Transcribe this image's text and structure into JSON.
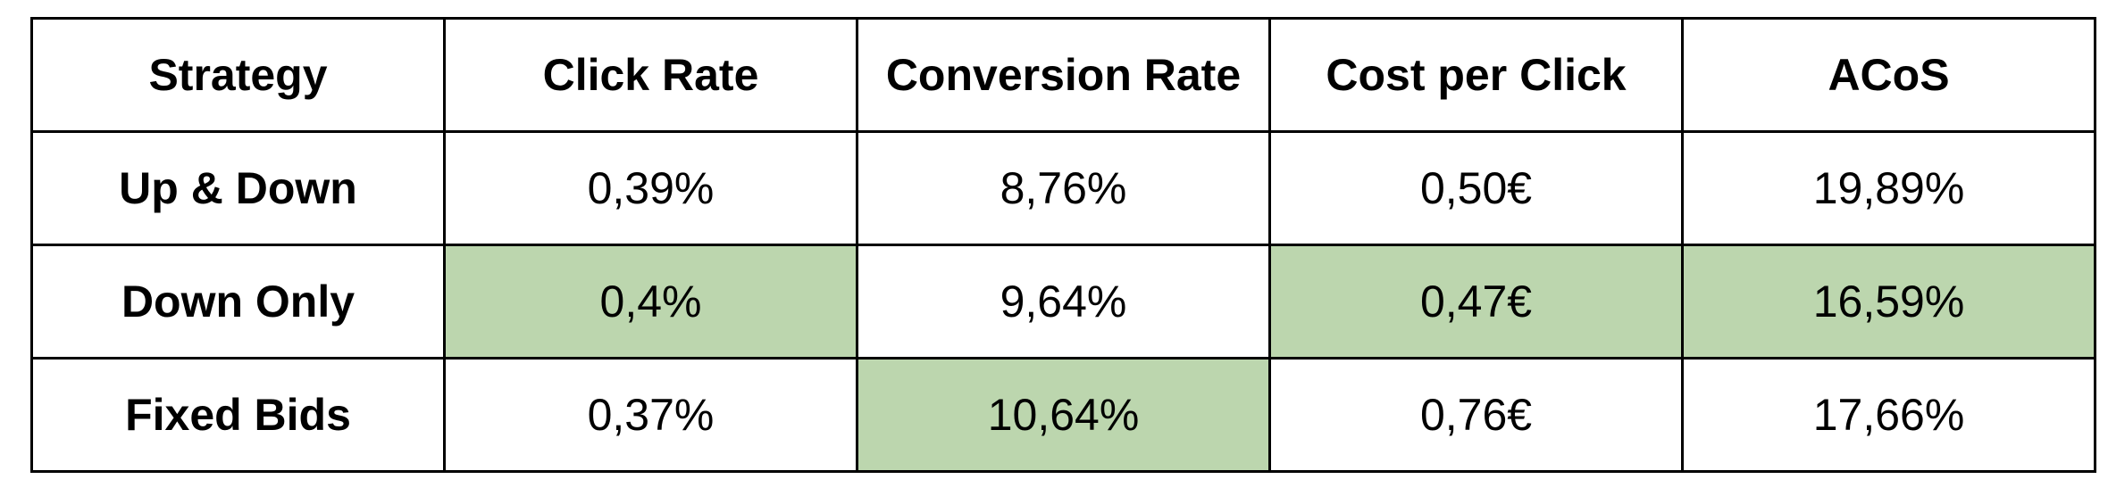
{
  "colors": {
    "highlight": "#bcd6ae",
    "border": "#000000",
    "background": "#ffffff"
  },
  "table": {
    "headers": [
      "Strategy",
      "Click Rate",
      "Conversion Rate",
      "Cost per Click",
      "ACoS"
    ],
    "rows": [
      {
        "strategy": "Up & Down",
        "click_rate": "0,39%",
        "conversion_rate": "8,76%",
        "cost_per_click": "0,50€",
        "acos": "19,89%",
        "highlighted": []
      },
      {
        "strategy": "Down Only",
        "click_rate": "0,4%",
        "conversion_rate": "9,64%",
        "cost_per_click": "0,47€",
        "acos": "16,59%",
        "highlighted": [
          "click_rate",
          "cost_per_click",
          "acos"
        ]
      },
      {
        "strategy": "Fixed Bids",
        "click_rate": "0,37%",
        "conversion_rate": "10,64%",
        "cost_per_click": "0,76€",
        "acos": "17,66%",
        "highlighted": [
          "conversion_rate"
        ]
      }
    ]
  }
}
